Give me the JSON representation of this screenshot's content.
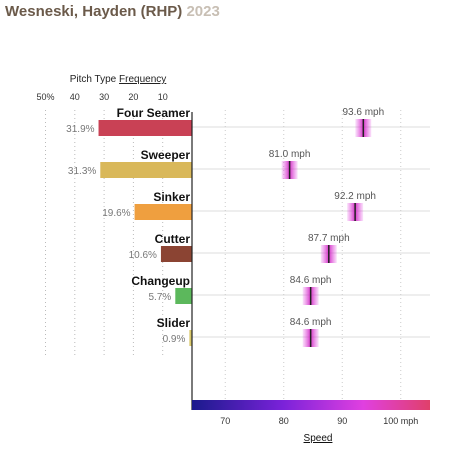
{
  "title": {
    "player": "Wesneski, Hayden (RHP)",
    "season": "2023"
  },
  "colors": {
    "title": "#6b5a4a",
    "season": "#c8bfb4"
  },
  "chart_data": [
    {
      "type": "bar",
      "orientation": "horizontal",
      "title": "Pitch Type",
      "title_emphasis": "Frequency",
      "categories": [
        "Four Seamer",
        "Sweeper",
        "Sinker",
        "Cutter",
        "Changeup",
        "Slider"
      ],
      "values": [
        31.9,
        31.3,
        19.6,
        10.6,
        5.7,
        0.9
      ],
      "value_labels": [
        "31.9%",
        "31.3%",
        "19.6%",
        "10.6%",
        "5.7%",
        "0.9%"
      ],
      "colors": [
        "#c94155",
        "#d9b85a",
        "#ef9f3f",
        "#8b4433",
        "#5cb85c",
        "#d9c86a"
      ],
      "xlim": [
        0,
        55
      ],
      "x_reversed": true,
      "ticks": [
        50,
        40,
        30,
        20,
        10
      ],
      "tick_labels": [
        "50%",
        "40",
        "30",
        "20",
        "10"
      ]
    },
    {
      "type": "scatter",
      "title": "",
      "xlabel": "Speed",
      "categories": [
        "Four Seamer",
        "Sweeper",
        "Sinker",
        "Cutter",
        "Changeup",
        "Slider"
      ],
      "values": [
        93.6,
        81.0,
        92.2,
        87.7,
        84.6,
        84.6
      ],
      "value_labels": [
        "93.6 mph",
        "81.0 mph",
        "92.2 mph",
        "87.7 mph",
        "84.6 mph",
        "84.6 mph"
      ],
      "xlim": [
        65,
        105
      ],
      "ticks": [
        70,
        80,
        90,
        100
      ],
      "tick_labels": [
        "70",
        "80",
        "90",
        "100 mph"
      ],
      "gradient": [
        "#1a1a8c",
        "#7a22d9",
        "#e040e0",
        "#e0406a"
      ]
    }
  ]
}
